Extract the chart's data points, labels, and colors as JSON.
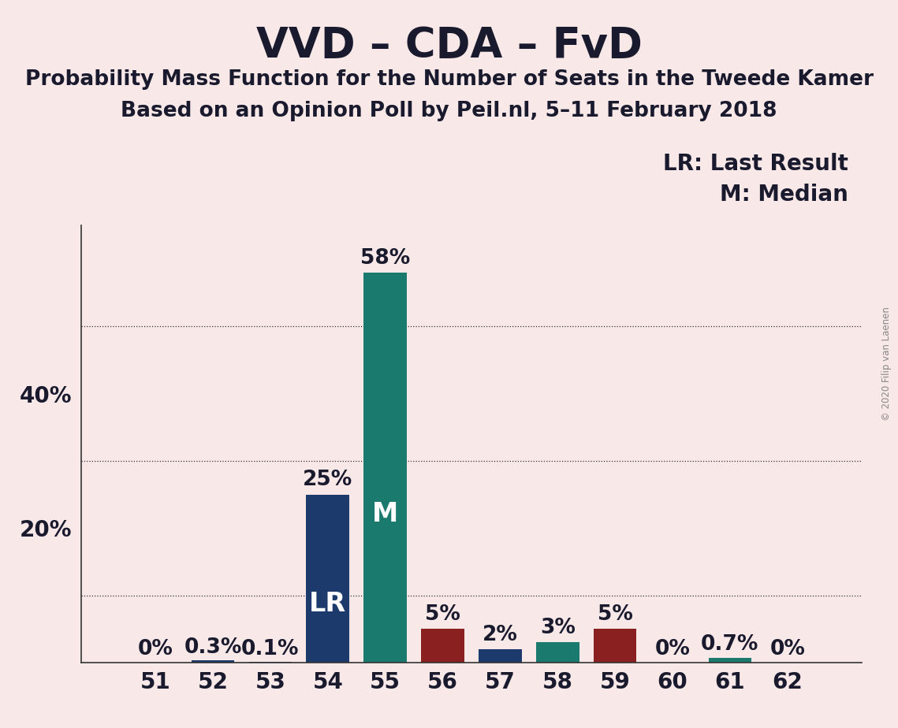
{
  "title": "VVD – CDA – FvD",
  "subtitle1": "Probability Mass Function for the Number of Seats in the Tweede Kamer",
  "subtitle2": "Based on an Opinion Poll by Peil.nl, 5–11 February 2018",
  "seats": [
    51,
    52,
    53,
    54,
    55,
    56,
    57,
    58,
    59,
    60,
    61,
    62
  ],
  "values": [
    0.0,
    0.3,
    0.1,
    25.0,
    58.0,
    5.0,
    2.0,
    3.0,
    5.0,
    0.0,
    0.7,
    0.0
  ],
  "labels": [
    "0%",
    "0.3%",
    "0.1%",
    "25%",
    "58%",
    "5%",
    "2%",
    "3%",
    "5%",
    "0%",
    "0.7%",
    "0%"
  ],
  "bar_colors_list": [
    "#F2D0D0",
    "#1C3A6B",
    "#1C3A6B",
    "#1C3A6B",
    "#1A7A6E",
    "#8B2020",
    "#1C3A6B",
    "#1A7A6E",
    "#8B2020",
    "#F2D0D0",
    "#1A7A6E",
    "#F2D0D0"
  ],
  "LR_seat": 54,
  "M_seat": 55,
  "legend_lr": "LR: Last Result",
  "legend_m": "M: Median",
  "background_color": "#F9E8E8",
  "grid_yticks": [
    10,
    30,
    50
  ],
  "ytick_positions": [
    20,
    40
  ],
  "ytick_labels": [
    "20%",
    "40%"
  ],
  "copyright": "© 2020 Filip van Laenen",
  "title_fontsize": 38,
  "subtitle_fontsize": 19,
  "tick_fontsize": 20,
  "legend_fontsize": 20,
  "bar_label_fontsize": 19,
  "inbar_fontsize": 24,
  "ylim": 65
}
